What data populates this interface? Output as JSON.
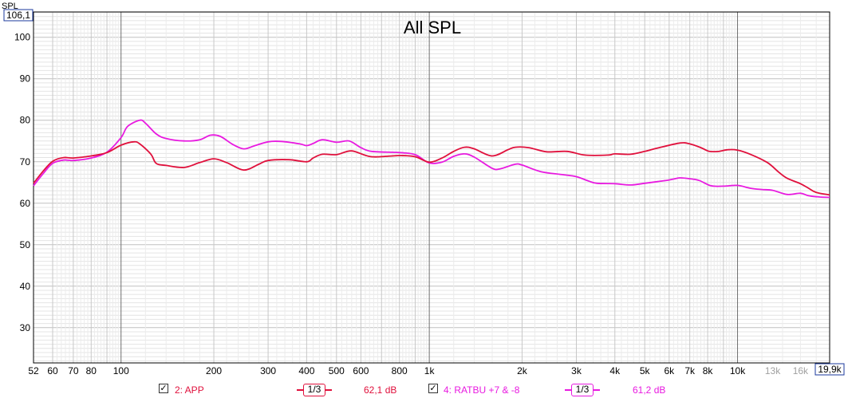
{
  "chart_data": {
    "type": "line",
    "title": "All SPL",
    "ylabel": "SPL",
    "x_scale": "log",
    "xlim": [
      52,
      19900
    ],
    "ylim": [
      21.5,
      106.1
    ],
    "ylim_top_label": "106,1",
    "xlim_right_label": "19,9k",
    "yticks": [
      30,
      40,
      50,
      60,
      70,
      80,
      90,
      100
    ],
    "xticks": [
      {
        "v": 52,
        "label": "52"
      },
      {
        "v": 60,
        "label": "60"
      },
      {
        "v": 70,
        "label": "70"
      },
      {
        "v": 80,
        "label": "80"
      },
      {
        "v": 100,
        "label": "100"
      },
      {
        "v": 200,
        "label": "200"
      },
      {
        "v": 300,
        "label": "300"
      },
      {
        "v": 400,
        "label": "400"
      },
      {
        "v": 500,
        "label": "500"
      },
      {
        "v": 600,
        "label": "600"
      },
      {
        "v": 800,
        "label": "800"
      },
      {
        "v": 1000,
        "label": "1k"
      },
      {
        "v": 2000,
        "label": "2k"
      },
      {
        "v": 3000,
        "label": "3k"
      },
      {
        "v": 4000,
        "label": "4k"
      },
      {
        "v": 5000,
        "label": "5k"
      },
      {
        "v": 6000,
        "label": "6k"
      },
      {
        "v": 7000,
        "label": "7k"
      },
      {
        "v": 8000,
        "label": "8k"
      },
      {
        "v": 10000,
        "label": "10k"
      },
      {
        "v": 13000,
        "label": "13k",
        "dim": true
      },
      {
        "v": 16000,
        "label": "16k",
        "dim": true
      }
    ],
    "grid": true,
    "legend_position": "bottom",
    "series": [
      {
        "name": "2: APP",
        "color": "#e0103c",
        "smoothing": "1/3",
        "level": "62,1 dB",
        "points": [
          [
            52,
            64.8
          ],
          [
            56,
            67.8
          ],
          [
            60,
            70.1
          ],
          [
            65,
            71.0
          ],
          [
            70,
            70.9
          ],
          [
            80,
            71.4
          ],
          [
            90,
            72.2
          ],
          [
            100,
            74.0
          ],
          [
            110,
            74.8
          ],
          [
            115,
            74.3
          ],
          [
            125,
            71.8
          ],
          [
            130,
            69.6
          ],
          [
            140,
            69.1
          ],
          [
            160,
            68.6
          ],
          [
            180,
            69.8
          ],
          [
            200,
            70.7
          ],
          [
            220,
            69.8
          ],
          [
            250,
            68.0
          ],
          [
            280,
            69.4
          ],
          [
            300,
            70.3
          ],
          [
            350,
            70.5
          ],
          [
            400,
            70.0
          ],
          [
            420,
            70.9
          ],
          [
            450,
            71.8
          ],
          [
            500,
            71.7
          ],
          [
            560,
            72.6
          ],
          [
            650,
            71.2
          ],
          [
            800,
            71.5
          ],
          [
            900,
            71.2
          ],
          [
            1000,
            69.9
          ],
          [
            1100,
            70.9
          ],
          [
            1200,
            72.5
          ],
          [
            1300,
            73.5
          ],
          [
            1400,
            73.1
          ],
          [
            1600,
            71.4
          ],
          [
            1800,
            72.9
          ],
          [
            1900,
            73.5
          ],
          [
            2100,
            73.4
          ],
          [
            2400,
            72.4
          ],
          [
            2800,
            72.5
          ],
          [
            3200,
            71.6
          ],
          [
            3800,
            71.6
          ],
          [
            4000,
            71.9
          ],
          [
            4500,
            71.8
          ],
          [
            5000,
            72.5
          ],
          [
            5500,
            73.3
          ],
          [
            6500,
            74.5
          ],
          [
            7000,
            74.3
          ],
          [
            7600,
            73.4
          ],
          [
            8100,
            72.5
          ],
          [
            8700,
            72.5
          ],
          [
            9300,
            72.9
          ],
          [
            10000,
            72.8
          ],
          [
            11000,
            71.8
          ],
          [
            12500,
            69.8
          ],
          [
            13600,
            67.5
          ],
          [
            14500,
            66.0
          ],
          [
            16000,
            64.7
          ],
          [
            17000,
            63.6
          ],
          [
            18000,
            62.6
          ],
          [
            19900,
            62.0
          ]
        ]
      },
      {
        "name": "4: RATBU +7 & -8",
        "color": "#e81ae0",
        "smoothing": "1/3",
        "level": "61,2 dB",
        "points": [
          [
            52,
            64.2
          ],
          [
            56,
            67.2
          ],
          [
            60,
            69.6
          ],
          [
            65,
            70.4
          ],
          [
            70,
            70.3
          ],
          [
            80,
            70.9
          ],
          [
            90,
            72.3
          ],
          [
            100,
            75.8
          ],
          [
            105,
            78.5
          ],
          [
            115,
            80.0
          ],
          [
            120,
            79.3
          ],
          [
            130,
            76.7
          ],
          [
            140,
            75.6
          ],
          [
            160,
            75.0
          ],
          [
            180,
            75.3
          ],
          [
            195,
            76.4
          ],
          [
            210,
            76.1
          ],
          [
            230,
            74.2
          ],
          [
            250,
            73.1
          ],
          [
            270,
            73.8
          ],
          [
            300,
            74.8
          ],
          [
            330,
            74.9
          ],
          [
            380,
            74.3
          ],
          [
            400,
            73.9
          ],
          [
            420,
            74.4
          ],
          [
            450,
            75.3
          ],
          [
            500,
            74.7
          ],
          [
            550,
            75.0
          ],
          [
            600,
            73.4
          ],
          [
            650,
            72.5
          ],
          [
            800,
            72.2
          ],
          [
            900,
            71.7
          ],
          [
            1000,
            69.7
          ],
          [
            1100,
            69.9
          ],
          [
            1200,
            71.3
          ],
          [
            1300,
            71.9
          ],
          [
            1400,
            71.1
          ],
          [
            1600,
            68.4
          ],
          [
            1700,
            68.3
          ],
          [
            1900,
            69.4
          ],
          [
            2000,
            69.2
          ],
          [
            2300,
            67.6
          ],
          [
            2700,
            66.9
          ],
          [
            3000,
            66.4
          ],
          [
            3300,
            65.3
          ],
          [
            3500,
            64.8
          ],
          [
            4000,
            64.7
          ],
          [
            4500,
            64.4
          ],
          [
            5000,
            64.8
          ],
          [
            5500,
            65.2
          ],
          [
            6000,
            65.6
          ],
          [
            6500,
            66.1
          ],
          [
            7000,
            65.9
          ],
          [
            7500,
            65.5
          ],
          [
            8200,
            64.2
          ],
          [
            9000,
            64.1
          ],
          [
            10000,
            64.3
          ],
          [
            11000,
            63.6
          ],
          [
            12000,
            63.3
          ],
          [
            13000,
            63.1
          ],
          [
            14500,
            62.1
          ],
          [
            16000,
            62.4
          ],
          [
            17000,
            61.8
          ],
          [
            18500,
            61.5
          ],
          [
            19900,
            61.4
          ]
        ]
      }
    ]
  }
}
